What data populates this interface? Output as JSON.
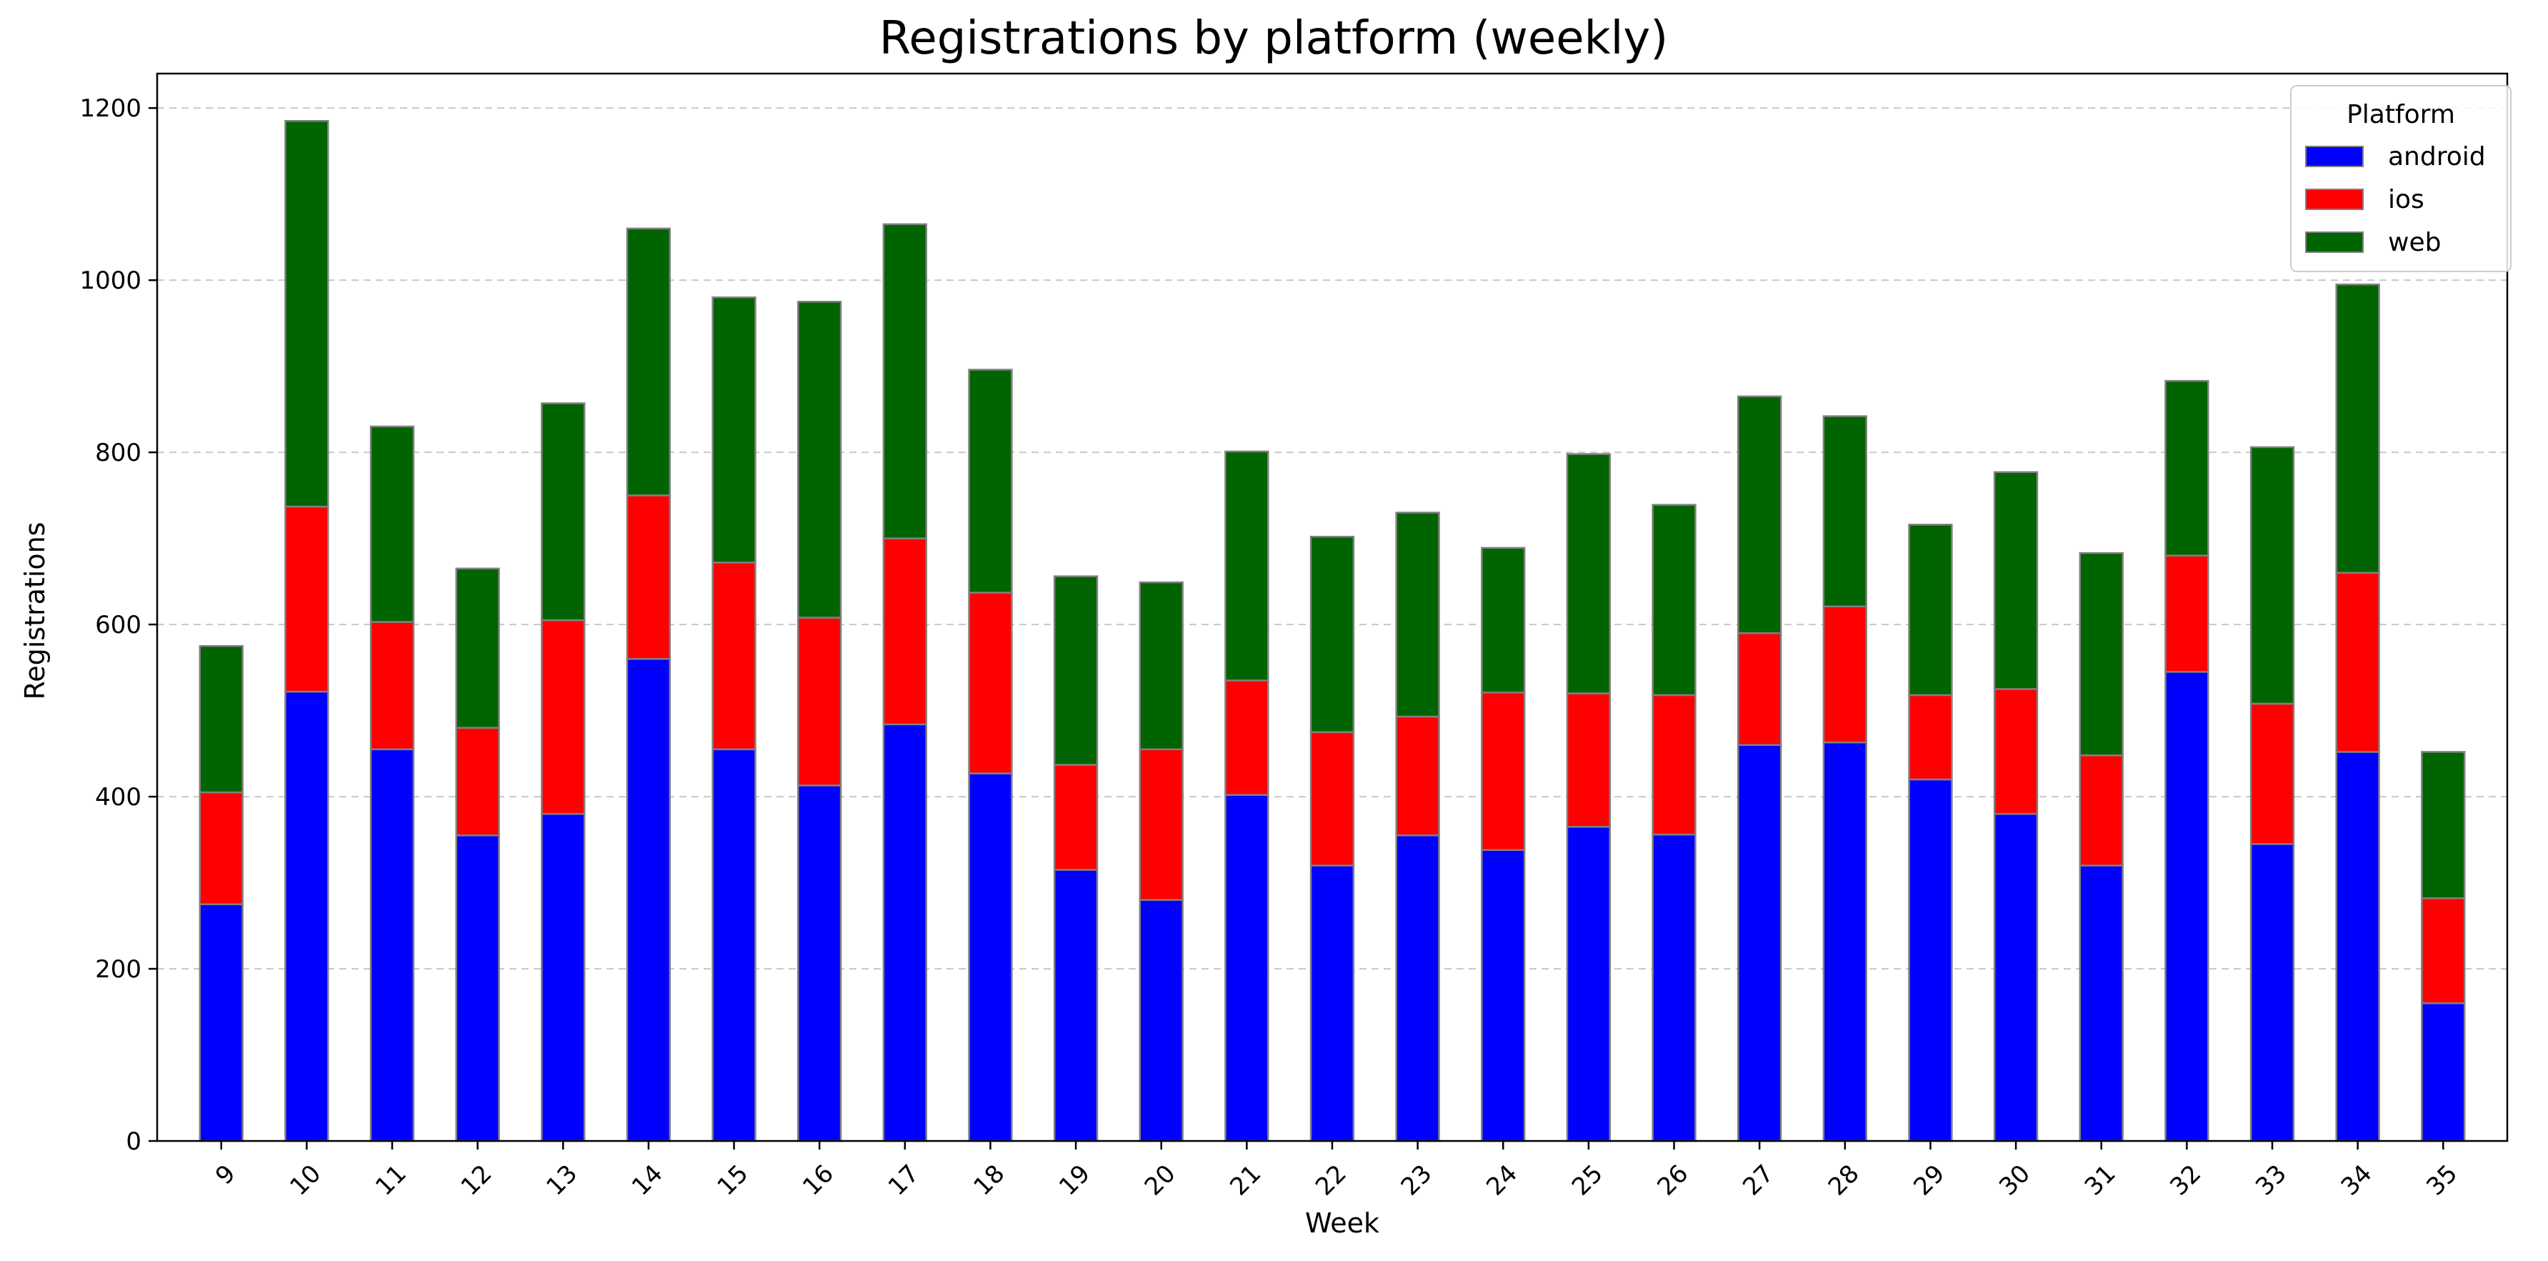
{
  "chart_data": {
    "type": "bar",
    "stacked": true,
    "title": "Registrations by platform (weekly)",
    "xlabel": "Week",
    "ylabel": "Registrations",
    "ylim": [
      0,
      1240
    ],
    "yticks": [
      0,
      200,
      400,
      600,
      800,
      1000,
      1200
    ],
    "grid": "y-dashed",
    "legend": {
      "title": "Platform",
      "placement": "top-right"
    },
    "categories": [
      "9",
      "10",
      "11",
      "12",
      "13",
      "14",
      "15",
      "16",
      "17",
      "18",
      "19",
      "20",
      "21",
      "22",
      "23",
      "24",
      "25",
      "26",
      "27",
      "28",
      "29",
      "30",
      "31",
      "32",
      "33",
      "34",
      "35"
    ],
    "series": [
      {
        "name": "android",
        "color": "#0000ff",
        "values": [
          275,
          522,
          455,
          355,
          380,
          560,
          455,
          413,
          484,
          427,
          315,
          280,
          402,
          320,
          355,
          338,
          365,
          356,
          460,
          463,
          420,
          380,
          320,
          545,
          345,
          452,
          160
        ]
      },
      {
        "name": "ios",
        "color": "#ff0000",
        "values": [
          130,
          215,
          148,
          125,
          225,
          190,
          217,
          195,
          216,
          210,
          122,
          175,
          133,
          155,
          138,
          183,
          155,
          162,
          130,
          158,
          98,
          145,
          128,
          135,
          163,
          208,
          122
        ]
      },
      {
        "name": "web",
        "color": "#006400",
        "values": [
          170,
          448,
          227,
          185,
          252,
          310,
          308,
          367,
          365,
          259,
          219,
          194,
          266,
          227,
          237,
          168,
          278,
          221,
          275,
          221,
          198,
          252,
          235,
          203,
          298,
          335,
          170
        ]
      }
    ]
  }
}
